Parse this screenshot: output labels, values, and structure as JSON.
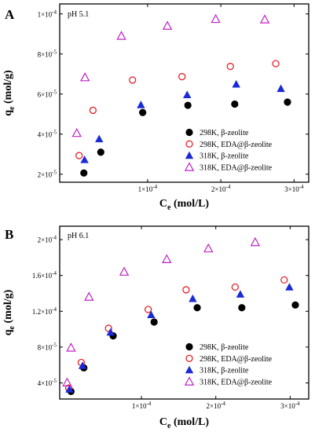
{
  "chart_data": [
    {
      "type": "scatter",
      "panel_label": "A",
      "annotation": "pH 5.1",
      "xlabel": "C",
      "xlabel_sub": "e",
      "xlabel_unit": " (mol/L)",
      "ylabel": "q",
      "ylabel_sub": "e",
      "ylabel_unit": " (mol/g)",
      "xlim": [
        -2e-05,
        0.00032
      ],
      "ylim": [
        1.6e-05,
        0.000105
      ],
      "x_ticks": [
        {
          "value": 0.0001,
          "mantissa": "1×10",
          "exp": "-4"
        },
        {
          "value": 0.0002,
          "mantissa": "2×10",
          "exp": "-4"
        },
        {
          "value": 0.0003,
          "mantissa": "3×10",
          "exp": "-4"
        }
      ],
      "y_ticks": [
        {
          "value": 2e-05,
          "mantissa": "2×10",
          "exp": "-5"
        },
        {
          "value": 4e-05,
          "mantissa": "4×10",
          "exp": "-5"
        },
        {
          "value": 6e-05,
          "mantissa": "6×10",
          "exp": "-5"
        },
        {
          "value": 8e-05,
          "mantissa": "8×10",
          "exp": "-5"
        },
        {
          "value": 0.0001,
          "mantissa": "1×10",
          "exp": "-4"
        }
      ],
      "legend_position": "bottom-right",
      "series": [
        {
          "name": "298K, β-zeolite",
          "marker": "circle-filled",
          "color": "#000000",
          "x": [
            1.3e-05,
            3.61e-05,
            9.33e-05,
            0.000155,
            0.000219,
            0.000291
          ],
          "y": [
            2.06e-05,
            3.1e-05,
            5.08e-05,
            5.44e-05,
            5.5e-05,
            5.6e-05
          ]
        },
        {
          "name": "298K, EDA@β-zeolite",
          "marker": "circle-open",
          "color": "#e8232a",
          "x": [
            6.5e-06,
            2.54e-05,
            7.94e-05,
            0.000147,
            0.000213,
            0.000275
          ],
          "y": [
            2.93e-05,
            5.19e-05,
            6.7e-05,
            6.87e-05,
            7.38e-05,
            7.52e-05
          ]
        },
        {
          "name": "318K, β-zeolite",
          "marker": "triangle-filled",
          "color": "#1a2ad6",
          "x": [
            1.39e-05,
            3.39e-05,
            9.09e-05,
            0.000154,
            0.000221,
            0.000282
          ],
          "y": [
            2.72e-05,
            3.76e-05,
            5.46e-05,
            5.96e-05,
            6.49e-05,
            6.27e-05
          ]
        },
        {
          "name": "318K, EDA@β-zeolite",
          "marker": "triangle-open",
          "color": "#c020c8",
          "x": [
            3.3e-06,
            1.45e-05,
            6.42e-05,
            0.000127,
            0.000193,
            0.00026
          ],
          "y": [
            4.05e-05,
            6.83e-05,
            8.9e-05,
            9.4e-05,
            9.74e-05,
            9.72e-05
          ]
        }
      ]
    },
    {
      "type": "scatter",
      "panel_label": "B",
      "annotation": "pH 6.1",
      "xlabel": "C",
      "xlabel_sub": "e",
      "xlabel_unit": " (mol/L)",
      "ylabel": "q",
      "ylabel_sub": "e",
      "ylabel_unit": " (mol/g)",
      "xlim": [
        -1e-05,
        0.000325
      ],
      "ylim": [
        2.2e-05,
        0.000215
      ],
      "x_ticks": [
        {
          "value": 0.0001,
          "mantissa": "1×10",
          "exp": "-4"
        },
        {
          "value": 0.0002,
          "mantissa": "2×10",
          "exp": "-4"
        },
        {
          "value": 0.0003,
          "mantissa": "3×10",
          "exp": "-4"
        }
      ],
      "y_ticks": [
        {
          "value": 4e-05,
          "mantissa": "4×10",
          "exp": "-5"
        },
        {
          "value": 8e-05,
          "mantissa": "8×10",
          "exp": "-5"
        },
        {
          "value": 0.00012,
          "mantissa": "1.2×10",
          "exp": "-4"
        },
        {
          "value": 0.00016,
          "mantissa": "1.6×10",
          "exp": "-4"
        },
        {
          "value": 0.0002,
          "mantissa": "2×10",
          "exp": "-4"
        }
      ],
      "legend_position": "bottom-right",
      "series": [
        {
          "name": "298K, β-zeolite",
          "marker": "circle-filled",
          "color": "#000000",
          "x": [
            5.2e-06,
            2.25e-05,
            6.19e-05,
            0.000117,
            0.000175,
            0.000235,
            0.000307
          ],
          "y": [
            3.04e-05,
            5.68e-05,
            9.25e-05,
            0.000108,
            0.000124,
            0.000124,
            0.000127
          ]
        },
        {
          "name": "298K, EDA@β-zeolite",
          "marker": "circle-open",
          "color": "#e8232a",
          "x": [
            2.2e-06,
            1.9e-05,
            5.57e-05,
            0.000109,
            0.00016,
            0.000226,
            0.000292
          ],
          "y": [
            3.43e-05,
            6.28e-05,
            0.000101,
            0.000122,
            0.000144,
            0.000147,
            0.000155
          ]
        },
        {
          "name": "318K, β-zeolite",
          "marker": "triangle-filled",
          "color": "#1a2ad6",
          "x": [
            3.1e-06,
            2.07e-05,
            5.84e-05,
            0.000113,
            0.000169,
            0.000233,
            0.000299
          ],
          "y": [
            3.29e-05,
            5.92e-05,
            9.65e-05,
            0.000116,
            0.000134,
            0.000139,
            0.000147
          ]
        },
        {
          "name": "318K, EDA@β-zeolite",
          "marker": "triangle-open",
          "color": "#c020c8",
          "x": [
            0.0,
            5.2e-06,
            2.94e-05,
            7.67e-05,
            0.000134,
            0.00019,
            0.000253
          ],
          "y": [
            4.03e-05,
            7.92e-05,
            0.000136,
            0.000164,
            0.000178,
            0.00019,
            0.000197
          ]
        }
      ]
    }
  ]
}
